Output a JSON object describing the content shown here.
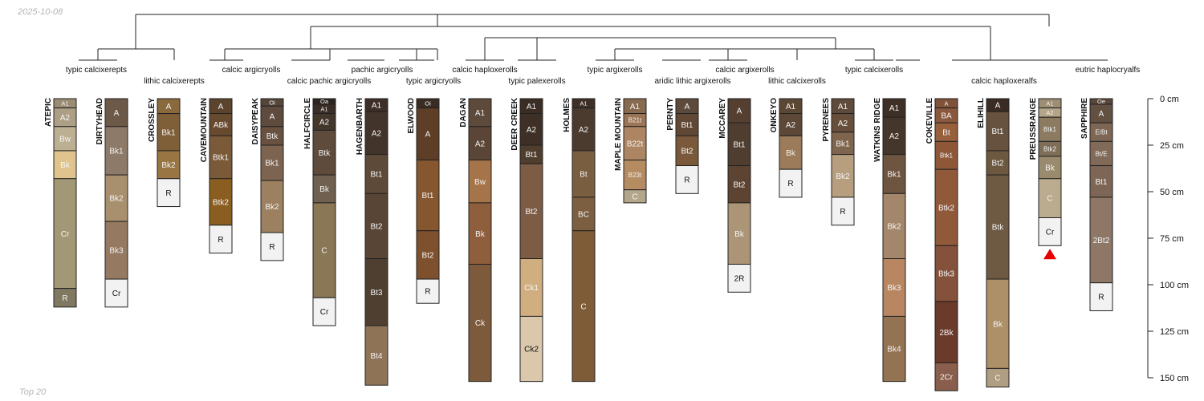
{
  "header": {
    "date": "2025-10-08"
  },
  "footer": {
    "caption": "Top 20"
  },
  "chart_data": {
    "type": "soil-profile-sketch",
    "depth_unit": "cm",
    "depth_range": [
      0,
      150
    ],
    "depth_ticks": [
      0,
      25,
      50,
      75,
      100,
      125,
      150
    ],
    "depth_tick_labels": [
      "0 cm",
      "25 cm",
      "50 cm",
      "75 cm",
      "100 cm",
      "125 cm",
      "150 cm"
    ],
    "profiles": [
      {
        "name": "ATEPIC",
        "horizons": [
          {
            "name": "A1",
            "top": 0,
            "bottom": 5,
            "color": "#9a8d74"
          },
          {
            "name": "A2",
            "top": 5,
            "bottom": 15,
            "color": "#ad9f85"
          },
          {
            "name": "Bw",
            "top": 15,
            "bottom": 28,
            "color": "#bcaf92"
          },
          {
            "name": "Bk",
            "top": 28,
            "bottom": 43,
            "color": "#dfc58d"
          },
          {
            "name": "Cr",
            "top": 43,
            "bottom": 102,
            "color": "#a29875"
          },
          {
            "name": "R",
            "top": 102,
            "bottom": 112,
            "color": "#807860"
          }
        ]
      },
      {
        "name": "DIRTYHEAD",
        "horizons": [
          {
            "name": "A",
            "top": 0,
            "bottom": 15,
            "color": "#6c5948"
          },
          {
            "name": "Bk1",
            "top": 15,
            "bottom": 41,
            "color": "#8e7a68"
          },
          {
            "name": "Bk2",
            "top": 41,
            "bottom": 66,
            "color": "#a8906f"
          },
          {
            "name": "Bk3",
            "top": 66,
            "bottom": 97,
            "color": "#957960"
          },
          {
            "name": "Cr",
            "top": 97,
            "bottom": 112,
            "color": "#f2f2f2"
          }
        ]
      },
      {
        "name": "CROSSLEY",
        "horizons": [
          {
            "name": "A",
            "top": 0,
            "bottom": 8,
            "color": "#8a6a3d"
          },
          {
            "name": "Bk1",
            "top": 8,
            "bottom": 28,
            "color": "#7e5f38"
          },
          {
            "name": "Bk2",
            "top": 28,
            "bottom": 43,
            "color": "#987542"
          },
          {
            "name": "R",
            "top": 43,
            "bottom": 58,
            "color": "#f2f2f2"
          }
        ]
      },
      {
        "name": "CAVEMOUNTAIN",
        "horizons": [
          {
            "name": "A",
            "top": 0,
            "bottom": 8,
            "color": "#5b432c"
          },
          {
            "name": "ABk",
            "top": 8,
            "bottom": 20,
            "color": "#684a2e"
          },
          {
            "name": "Btk1",
            "top": 20,
            "bottom": 43,
            "color": "#7a5a38"
          },
          {
            "name": "Btk2",
            "top": 43,
            "bottom": 68,
            "color": "#8a5e20"
          },
          {
            "name": "R",
            "top": 68,
            "bottom": 83,
            "color": "#f2f2f2"
          }
        ]
      },
      {
        "name": "DAISYPEAK",
        "horizons": [
          {
            "name": "Oi",
            "top": 0,
            "bottom": 4,
            "color": "#55463a"
          },
          {
            "name": "A",
            "top": 4,
            "bottom": 15,
            "color": "#5e4b3d"
          },
          {
            "name": "Btk",
            "top": 15,
            "bottom": 25,
            "color": "#685140"
          },
          {
            "name": "Bk1",
            "top": 25,
            "bottom": 44,
            "color": "#7d6450"
          },
          {
            "name": "Bk2",
            "top": 44,
            "bottom": 72,
            "color": "#9c8060"
          },
          {
            "name": "R",
            "top": 72,
            "bottom": 87,
            "color": "#f2f2f2"
          }
        ]
      },
      {
        "name": "HALFCIRCLE",
        "horizons": [
          {
            "name": "Oa",
            "top": 0,
            "bottom": 3,
            "color": "#2e2521"
          },
          {
            "name": "A1",
            "top": 3,
            "bottom": 8,
            "color": "#3a2e26"
          },
          {
            "name": "A2",
            "top": 8,
            "bottom": 17,
            "color": "#43372c"
          },
          {
            "name": "Btk",
            "top": 17,
            "bottom": 41,
            "color": "#5e4b3b"
          },
          {
            "name": "Bk",
            "top": 41,
            "bottom": 56,
            "color": "#706050"
          },
          {
            "name": "C",
            "top": 56,
            "bottom": 107,
            "color": "#8a7756"
          },
          {
            "name": "Cr",
            "top": 107,
            "bottom": 122,
            "color": "#f2f2f2"
          }
        ]
      },
      {
        "name": "HAGENBARTH",
        "horizons": [
          {
            "name": "A1",
            "top": 0,
            "bottom": 7,
            "color": "#3d2f28"
          },
          {
            "name": "A2",
            "top": 7,
            "bottom": 30,
            "color": "#42342b"
          },
          {
            "name": "Bt1",
            "top": 30,
            "bottom": 51,
            "color": "#5e4a38"
          },
          {
            "name": "Bt2",
            "top": 51,
            "bottom": 86,
            "color": "#584536"
          },
          {
            "name": "Bt3",
            "top": 86,
            "bottom": 122,
            "color": "#4f3f31"
          },
          {
            "name": "Bt4",
            "top": 122,
            "bottom": 154,
            "color": "#8e7357"
          }
        ]
      },
      {
        "name": "ELWOOD",
        "horizons": [
          {
            "name": "Oi",
            "top": 0,
            "bottom": 5,
            "color": "#3a2c22"
          },
          {
            "name": "A",
            "top": 5,
            "bottom": 33,
            "color": "#5e3e27"
          },
          {
            "name": "Bt1",
            "top": 33,
            "bottom": 71,
            "color": "#86562f"
          },
          {
            "name": "Bt2",
            "top": 71,
            "bottom": 97,
            "color": "#7e502e"
          },
          {
            "name": "R",
            "top": 97,
            "bottom": 110,
            "color": "#f2f2f2"
          }
        ]
      },
      {
        "name": "DAGAN",
        "horizons": [
          {
            "name": "A1",
            "top": 0,
            "bottom": 15,
            "color": "#5e4a3b"
          },
          {
            "name": "A2",
            "top": 15,
            "bottom": 33,
            "color": "#5a4536"
          },
          {
            "name": "Bw",
            "top": 33,
            "bottom": 56,
            "color": "#a57448"
          },
          {
            "name": "Bk",
            "top": 56,
            "bottom": 89,
            "color": "#8e5e3d"
          },
          {
            "name": "Ck",
            "top": 89,
            "bottom": 152,
            "color": "#7e5a3c"
          }
        ]
      },
      {
        "name": "DEER CREEK",
        "horizons": [
          {
            "name": "A1",
            "top": 0,
            "bottom": 8,
            "color": "#3a2d24"
          },
          {
            "name": "A2",
            "top": 8,
            "bottom": 25,
            "color": "#3e3026"
          },
          {
            "name": "Bt1",
            "top": 25,
            "bottom": 35,
            "color": "#4f3d2e"
          },
          {
            "name": "Bt2",
            "top": 35,
            "bottom": 86,
            "color": "#7d5c46"
          },
          {
            "name": "Ck1",
            "top": 86,
            "bottom": 117,
            "color": "#d0ae80"
          },
          {
            "name": "Ck2",
            "top": 117,
            "bottom": 152,
            "color": "#dac7ac"
          }
        ]
      },
      {
        "name": "HOLMES",
        "horizons": [
          {
            "name": "A1",
            "top": 0,
            "bottom": 5,
            "color": "#3e3027"
          },
          {
            "name": "A2",
            "top": 5,
            "bottom": 28,
            "color": "#4b3b2f"
          },
          {
            "name": "Bt",
            "top": 28,
            "bottom": 53,
            "color": "#7a5e40"
          },
          {
            "name": "BC",
            "top": 53,
            "bottom": 71,
            "color": "#7b5f40"
          },
          {
            "name": "C",
            "top": 71,
            "bottom": 152,
            "color": "#7d5c37"
          }
        ]
      },
      {
        "name": "MAPLE MOUNTAIN",
        "horizons": [
          {
            "name": "A1",
            "top": 0,
            "bottom": 8,
            "color": "#886a4f"
          },
          {
            "name": "B21t",
            "top": 8,
            "bottom": 15,
            "color": "#9b7556"
          },
          {
            "name": "B22t",
            "top": 15,
            "bottom": 33,
            "color": "#ad8562"
          },
          {
            "name": "B23t",
            "top": 33,
            "bottom": 49,
            "color": "#b58b62"
          },
          {
            "name": "C",
            "top": 49,
            "bottom": 56,
            "color": "#b4a68c"
          }
        ]
      },
      {
        "name": "PERNTY",
        "horizons": [
          {
            "name": "A",
            "top": 0,
            "bottom": 8,
            "color": "#5d4a3a"
          },
          {
            "name": "Bt1",
            "top": 8,
            "bottom": 20,
            "color": "#614834"
          },
          {
            "name": "Bt2",
            "top": 20,
            "bottom": 36,
            "color": "#7a593a"
          },
          {
            "name": "R",
            "top": 36,
            "bottom": 51,
            "color": "#f2f2f2"
          }
        ]
      },
      {
        "name": "MCCAREY",
        "horizons": [
          {
            "name": "A",
            "top": 0,
            "bottom": 13,
            "color": "#543f31"
          },
          {
            "name": "Bt1",
            "top": 13,
            "bottom": 36,
            "color": "#4f3e30"
          },
          {
            "name": "Bt2",
            "top": 36,
            "bottom": 56,
            "color": "#5c4332"
          },
          {
            "name": "Bk",
            "top": 56,
            "bottom": 89,
            "color": "#ac9577"
          },
          {
            "name": "2R",
            "top": 89,
            "bottom": 104,
            "color": "#f2f2f2"
          }
        ]
      },
      {
        "name": "ONKEYO",
        "horizons": [
          {
            "name": "A1",
            "top": 0,
            "bottom": 8,
            "color": "#5c4735"
          },
          {
            "name": "A2",
            "top": 8,
            "bottom": 20,
            "color": "#5d4838"
          },
          {
            "name": "Bk",
            "top": 20,
            "bottom": 38,
            "color": "#9b7b59"
          },
          {
            "name": "R",
            "top": 38,
            "bottom": 53,
            "color": "#f2f2f2"
          }
        ]
      },
      {
        "name": "PYRENEES",
        "horizons": [
          {
            "name": "A1",
            "top": 0,
            "bottom": 8,
            "color": "#5e4b3b"
          },
          {
            "name": "A2",
            "top": 8,
            "bottom": 18,
            "color": "#684f3b"
          },
          {
            "name": "Bk1",
            "top": 18,
            "bottom": 30,
            "color": "#7f654d"
          },
          {
            "name": "Bk2",
            "top": 30,
            "bottom": 53,
            "color": "#b69e7f"
          },
          {
            "name": "R",
            "top": 53,
            "bottom": 68,
            "color": "#f2f2f2"
          }
        ]
      },
      {
        "name": "WATKINS RIDGE",
        "horizons": [
          {
            "name": "A1",
            "top": 0,
            "bottom": 10,
            "color": "#3e3026"
          },
          {
            "name": "A2",
            "top": 10,
            "bottom": 30,
            "color": "#45362b"
          },
          {
            "name": "Bk1",
            "top": 30,
            "bottom": 51,
            "color": "#6e5540"
          },
          {
            "name": "Bk2",
            "top": 51,
            "bottom": 86,
            "color": "#a4876a"
          },
          {
            "name": "Bk3",
            "top": 86,
            "bottom": 117,
            "color": "#b88762"
          },
          {
            "name": "Bk4",
            "top": 117,
            "bottom": 152,
            "color": "#947353"
          }
        ]
      },
      {
        "name": "COKEVILLE",
        "horizons": [
          {
            "name": "A",
            "top": 0,
            "bottom": 5,
            "color": "#7f5239"
          },
          {
            "name": "BA",
            "top": 5,
            "bottom": 13,
            "color": "#8a583c"
          },
          {
            "name": "Bt",
            "top": 13,
            "bottom": 23,
            "color": "#985f3c"
          },
          {
            "name": "Btk1",
            "top": 23,
            "bottom": 38,
            "color": "#8e5838"
          },
          {
            "name": "Btk2",
            "top": 38,
            "bottom": 79,
            "color": "#90593a"
          },
          {
            "name": "Btk3",
            "top": 79,
            "bottom": 109,
            "color": "#84513a"
          },
          {
            "name": "2Bk",
            "top": 109,
            "bottom": 142,
            "color": "#6a3a2a"
          },
          {
            "name": "2Cr",
            "top": 142,
            "bottom": 157,
            "color": "#8a5e4c"
          }
        ]
      },
      {
        "name": "ELIHILL",
        "horizons": [
          {
            "name": "A",
            "top": 0,
            "bottom": 7,
            "color": "#3a2c23"
          },
          {
            "name": "Bt1",
            "top": 7,
            "bottom": 28,
            "color": "#66523e"
          },
          {
            "name": "Bt2",
            "top": 28,
            "bottom": 41,
            "color": "#6c573f"
          },
          {
            "name": "Btk",
            "top": 41,
            "bottom": 97,
            "color": "#6e5a43"
          },
          {
            "name": "Bk",
            "top": 97,
            "bottom": 145,
            "color": "#ad9068"
          },
          {
            "name": "C",
            "top": 145,
            "bottom": 155,
            "color": "#b09e82"
          }
        ]
      },
      {
        "name": "PREUSSRANGE",
        "horizons": [
          {
            "name": "A1",
            "top": 0,
            "bottom": 5,
            "color": "#9c8d73"
          },
          {
            "name": "A2",
            "top": 5,
            "bottom": 10,
            "color": "#b4a488"
          },
          {
            "name": "Btk1",
            "top": 10,
            "bottom": 23,
            "color": "#8c7b61"
          },
          {
            "name": "Btk2",
            "top": 23,
            "bottom": 31,
            "color": "#7f6e57"
          },
          {
            "name": "Bk",
            "top": 31,
            "bottom": 43,
            "color": "#9a8a6e"
          },
          {
            "name": "C",
            "top": 43,
            "bottom": 64,
            "color": "#bbab8f"
          },
          {
            "name": "Cr",
            "top": 64,
            "bottom": 79,
            "color": "#f2f2f2"
          }
        ],
        "truncated": true
      },
      {
        "name": "SAPPHIRE",
        "horizons": [
          {
            "name": "Oe",
            "top": 0,
            "bottom": 3,
            "color": "#5a463a"
          },
          {
            "name": "A",
            "top": 3,
            "bottom": 13,
            "color": "#625040"
          },
          {
            "name": "E/Bt",
            "top": 13,
            "bottom": 23,
            "color": "#7e6654"
          },
          {
            "name": "Bt/E",
            "top": 23,
            "bottom": 36,
            "color": "#826a58"
          },
          {
            "name": "Bt1",
            "top": 36,
            "bottom": 53,
            "color": "#7e6656"
          },
          {
            "name": "2Bt2",
            "top": 53,
            "bottom": 99,
            "color": "#8e7766"
          },
          {
            "name": "R",
            "top": 99,
            "bottom": 114,
            "color": "#f2f2f2"
          }
        ]
      }
    ],
    "taxa_labels": [
      "typic calcixerepts",
      "lithic calcixerepts",
      "calcic argicryolls",
      "calcic pachic argicryolls",
      "pachic argicryolls",
      "typic argicryolls",
      "calcic haploxerolls",
      "typic palexerolls",
      "typic argixerolls",
      "aridic lithic argixerolls",
      "calcic argixerolls",
      "lithic calcixerolls",
      "typic calcixerolls",
      "calcic haploxeralfs",
      "eutric haplocryalfs"
    ]
  }
}
